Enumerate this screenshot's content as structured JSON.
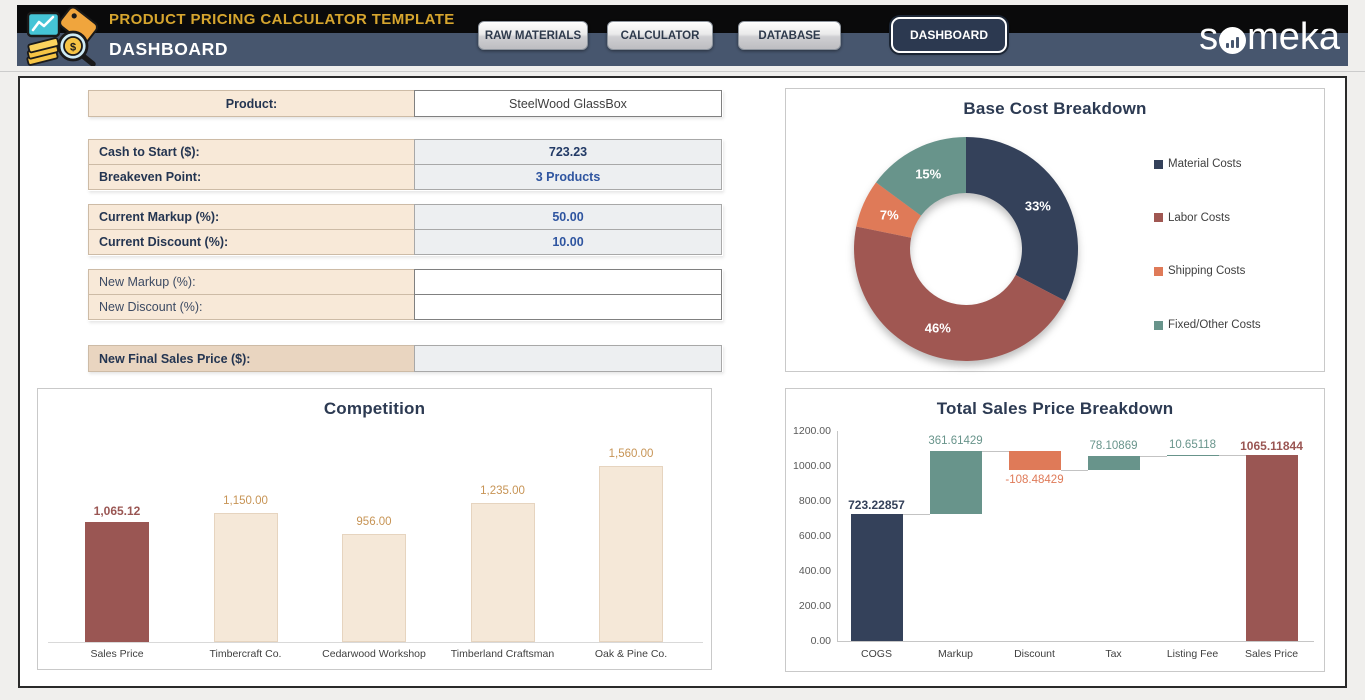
{
  "header": {
    "app_title": "PRODUCT PRICING CALCULATOR TEMPLATE",
    "page_title": "DASHBOARD",
    "brand": "someka",
    "logo_icon": "pricing-analytics-logo",
    "nav": [
      {
        "label": "RAW MATERIALS",
        "active": false
      },
      {
        "label": "CALCULATOR",
        "active": false
      },
      {
        "label": "DATABASE",
        "active": false
      },
      {
        "label": "DASHBOARD",
        "active": true
      }
    ]
  },
  "palette": {
    "navy": "#34415a",
    "brick": "#9a5653",
    "salmon": "#df7a58",
    "teal": "#68948b",
    "cream": "#f5e8d8",
    "tan_value_label": "#c79455",
    "gold_title": "#d6a52e",
    "slate_band": "#47566e",
    "black_band": "#0a0a0b",
    "label_beige": "#f8e9d8",
    "label_tan": "#e9d5c0",
    "value_gray_bg": "#edeff1",
    "value_blue": "#2f55a0",
    "value_dark_blue": "#223a66",
    "title_navy": "#2c3a52"
  },
  "form": {
    "groups": [
      {
        "rows": [
          {
            "label": "Product:",
            "value": "SteelWood GlassBox",
            "editable": true,
            "bold": true,
            "label_align": "center",
            "val_style": "white",
            "value_color": "#3f3f3f",
            "value_bold": false
          }
        ]
      },
      {
        "rows": [
          {
            "label": "Cash to Start ($):",
            "value": "723.23",
            "editable": false,
            "bold": true,
            "label_align": "left",
            "val_style": "gray",
            "value_color": "#223a66",
            "value_bold": true
          },
          {
            "label": "Breakeven Point:",
            "value": "3 Products",
            "editable": false,
            "bold": true,
            "label_align": "left",
            "val_style": "gray",
            "value_color": "#2f55a0",
            "value_bold": true
          }
        ]
      },
      {
        "rows": [
          {
            "label": "Current Markup (%):",
            "value": "50.00",
            "editable": false,
            "bold": true,
            "label_align": "left",
            "val_style": "gray",
            "value_color": "#2f55a0",
            "value_bold": true
          },
          {
            "label": "Current Discount (%):",
            "value": "10.00",
            "editable": false,
            "bold": true,
            "label_align": "left",
            "val_style": "gray",
            "value_color": "#2f55a0",
            "value_bold": true
          }
        ]
      },
      {
        "rows": [
          {
            "label": "New Markup (%):",
            "value": "",
            "editable": true,
            "bold": false,
            "label_align": "left",
            "val_style": "white",
            "value_color": "#3f3f3f",
            "value_bold": false
          },
          {
            "label": "New Discount (%):",
            "value": "",
            "editable": true,
            "bold": false,
            "label_align": "left",
            "val_style": "white",
            "value_color": "#3f3f3f",
            "value_bold": false
          }
        ]
      },
      {
        "rows": [
          {
            "label": "New Final Sales Price ($):",
            "value": "",
            "editable": false,
            "bold": true,
            "label_align": "left",
            "label_style": "tan",
            "val_style": "gray",
            "value_color": "#223a66",
            "value_bold": true
          }
        ]
      }
    ]
  },
  "chart_data": [
    {
      "type": "pie",
      "subtype": "donut",
      "title": "Base Cost Breakdown",
      "labels": [
        "Material Costs",
        "Labor Costs",
        "Shipping Costs",
        "Fixed/Other Costs"
      ],
      "values": [
        33,
        46,
        7,
        15
      ],
      "unit": "%",
      "data_labels": [
        "33%",
        "46%",
        "7%",
        "15%"
      ],
      "colors": [
        "#34415a",
        "#a05752",
        "#df7a58",
        "#68948b"
      ],
      "hole_ratio": 0.5,
      "start_angle_deg": 0,
      "direction": "clockwise",
      "legend_position": "right",
      "grid": false
    },
    {
      "type": "bar",
      "title": "Competition",
      "categories": [
        "Sales Price",
        "Timbercraft Co.",
        "Cedarwood Workshop",
        "Timberland Craftsman",
        "Oak & Pine Co."
      ],
      "values": [
        1065.12,
        1150.0,
        956.0,
        1235.0,
        1560.0
      ],
      "data_labels": [
        "1,065.12",
        "1,150.00",
        "956.00",
        "1,235.00",
        "1,560.00"
      ],
      "bar_colors": [
        "#9a5653",
        "#f5e8d8",
        "#f5e8d8",
        "#f5e8d8",
        "#f5e8d8"
      ],
      "label_colors": [
        "#9a5653",
        "#c79455",
        "#c79455",
        "#c79455",
        "#c79455"
      ],
      "highlight_index": 0,
      "xlabel": "",
      "ylabel": "",
      "ylim": [
        0,
        1830
      ],
      "y_axis_visible": false,
      "grid": false,
      "legend_position": "none"
    },
    {
      "type": "waterfall",
      "title": "Total Sales Price Breakdown",
      "categories": [
        "COGS",
        "Markup",
        "Discount",
        "Tax",
        "Listing Fee",
        "Sales Price"
      ],
      "values": [
        723.22857,
        361.61429,
        -108.48429,
        78.10869,
        10.65118,
        1065.11844
      ],
      "measures": [
        "absolute",
        "relative",
        "relative",
        "relative",
        "relative",
        "total"
      ],
      "data_labels": [
        "723.22857",
        "361.61429",
        "-108.48429",
        "78.10869",
        "10.65118",
        "1065.11844"
      ],
      "colors": {
        "start": "#34415a",
        "increase": "#68948b",
        "decrease": "#df7a58",
        "total": "#9a5653"
      },
      "xlabel": "",
      "ylabel": "",
      "ylim": [
        0,
        1200
      ],
      "ytick_step": 200,
      "yticks": [
        "0.00",
        "200.00",
        "400.00",
        "600.00",
        "800.00",
        "1000.00",
        "1200.00"
      ],
      "grid": false,
      "legend_position": "none"
    }
  ]
}
